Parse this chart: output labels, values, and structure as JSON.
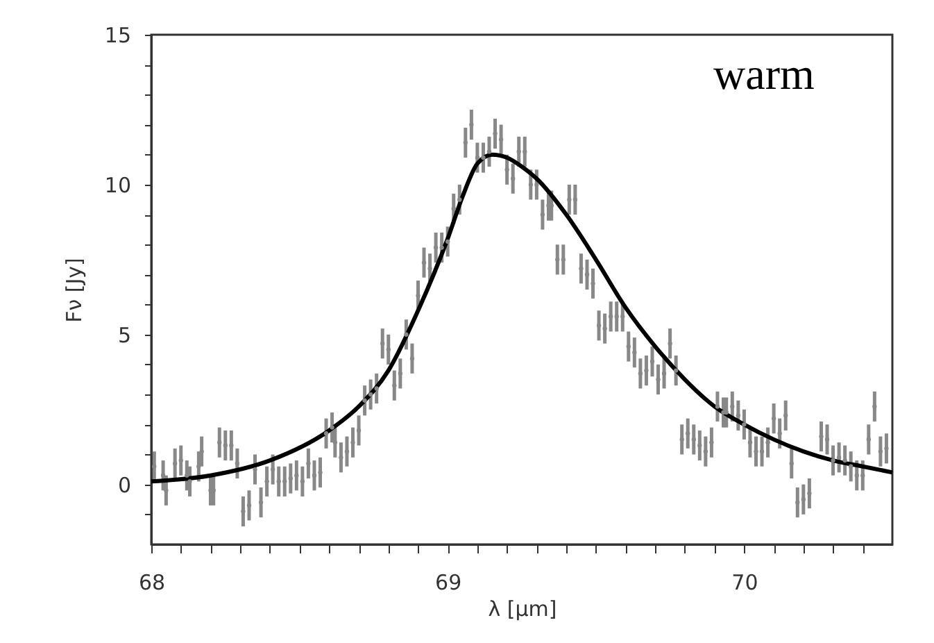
{
  "chart_data": {
    "type": "scatter",
    "xlabel": "λ [μm]",
    "ylabel": "Fν [Jy]",
    "annotations": [
      "warm"
    ],
    "xlim": [
      68,
      70.5
    ],
    "ylim": [
      -2,
      15
    ],
    "xticks": [
      68,
      {
        "value": 68.1,
        "label": null
      },
      {
        "value": 68.2,
        "label": null
      },
      {
        "value": 68.3,
        "label": null
      },
      {
        "value": 68.4,
        "label": null
      },
      {
        "value": 68.5,
        "label": null
      },
      {
        "value": 68.6,
        "label": null
      },
      {
        "value": 68.7,
        "label": null
      },
      {
        "value": 68.8,
        "label": null
      },
      {
        "value": 68.9,
        "label": null
      },
      69,
      {
        "value": 69.1,
        "label": null
      },
      {
        "value": 69.2,
        "label": null
      },
      {
        "value": 69.3,
        "label": null
      },
      {
        "value": 69.4,
        "label": null
      },
      {
        "value": 69.5,
        "label": null
      },
      {
        "value": 69.6,
        "label": null
      },
      {
        "value": 69.7,
        "label": null
      },
      {
        "value": 69.8,
        "label": null
      },
      {
        "value": 69.9,
        "label": null
      },
      70,
      {
        "value": 70.1,
        "label": null
      },
      {
        "value": 70.2,
        "label": null
      },
      {
        "value": 70.3,
        "label": null
      },
      {
        "value": 70.4,
        "label": null
      }
    ],
    "yticks": [
      {
        "value": -1,
        "label": null
      },
      0,
      {
        "value": 1,
        "label": null
      },
      {
        "value": 2,
        "label": null
      },
      {
        "value": 3,
        "label": null
      },
      {
        "value": 4,
        "label": null
      },
      5,
      {
        "value": 6,
        "label": null
      },
      {
        "value": 7,
        "label": null
      },
      {
        "value": 8,
        "label": null
      },
      {
        "value": 9,
        "label": null
      },
      10,
      {
        "value": 11,
        "label": null
      },
      {
        "value": 12,
        "label": null
      },
      {
        "value": 13,
        "label": null
      },
      {
        "value": 14,
        "label": null
      },
      15
    ],
    "grid": false,
    "series": [
      {
        "marker": "circle",
        "color": "#888888",
        "x": [
          68.01,
          68.04,
          68.05,
          68.08,
          68.1,
          68.12,
          68.13,
          68.16,
          68.17,
          68.2,
          68.21,
          68.23,
          68.25,
          68.27,
          68.29,
          68.31,
          68.33,
          68.35,
          68.37,
          68.39,
          68.41,
          68.43,
          68.45,
          68.47,
          68.49,
          68.51,
          68.53,
          68.55,
          68.57,
          68.59,
          68.61,
          68.62,
          68.64,
          68.66,
          68.68,
          68.7,
          68.72,
          68.74,
          68.76,
          68.78,
          68.8,
          68.82,
          68.84,
          68.86,
          68.88,
          68.9,
          68.92,
          68.94,
          68.96,
          68.98,
          69.0,
          69.02,
          69.04,
          69.06,
          69.08,
          69.1,
          69.12,
          69.14,
          69.16,
          69.18,
          69.2,
          69.22,
          69.24,
          69.26,
          69.28,
          69.3,
          69.32,
          69.34,
          69.35,
          69.37,
          69.39,
          69.41,
          69.43,
          69.45,
          69.47,
          69.49,
          69.51,
          69.53,
          69.55,
          69.57,
          69.59,
          69.61,
          69.63,
          69.65,
          69.67,
          69.69,
          69.71,
          69.73,
          69.75,
          69.77,
          69.79,
          69.81,
          69.83,
          69.85,
          69.87,
          69.89,
          69.91,
          69.93,
          69.94,
          69.96,
          69.98,
          70.0,
          70.02,
          70.04,
          70.06,
          70.08,
          70.1,
          70.12,
          70.14,
          70.16,
          70.18,
          70.2,
          70.22,
          70.26,
          70.28,
          70.3,
          70.32,
          70.34,
          70.36,
          70.38,
          70.4,
          70.42,
          70.44,
          70.46,
          70.48
        ],
        "values": [
          0.6,
          0.3,
          -0.2,
          0.7,
          0.8,
          0.3,
          0.1,
          0.6,
          1.1,
          -0.2,
          -0.2,
          1.4,
          1.3,
          1.3,
          0.7,
          -0.9,
          -0.7,
          0.5,
          -0.6,
          0.1,
          0.5,
          0.1,
          0.1,
          0.2,
          0.3,
          0.1,
          0.7,
          0.3,
          0.4,
          1.7,
          1.9,
          1.4,
          0.9,
          1.1,
          1.4,
          1.8,
          2.8,
          3.0,
          3.2,
          4.7,
          4.5,
          3.3,
          3.7,
          5.0,
          4.2,
          6.3,
          7.4,
          7.2,
          7.9,
          7.9,
          8.1,
          9.2,
          9.5,
          11.4,
          12.0,
          10.9,
          10.9,
          11.1,
          11.7,
          11.5,
          10.5,
          10.2,
          11.1,
          11.1,
          10.0,
          10.0,
          9.0,
          9.3,
          9.3,
          7.5,
          7.5,
          9.5,
          9.5,
          7.2,
          7.0,
          6.7,
          5.3,
          5.2,
          5.6,
          5.6,
          5.6,
          4.6,
          4.4,
          3.7,
          3.8,
          4.1,
          3.5,
          3.7,
          4.7,
          3.8,
          1.5,
          1.7,
          1.5,
          1.3,
          1.1,
          1.4,
          2.6,
          2.4,
          2.4,
          2.6,
          2.3,
          2.0,
          1.4,
          1.1,
          1.1,
          1.4,
          2.2,
          1.7,
          2.3,
          0.7,
          -0.6,
          -0.5,
          -0.3,
          1.6,
          1.5,
          0.8,
          0.9,
          0.8,
          0.6,
          0.3,
          0.3,
          1.5,
          2.6,
          1.1,
          1.2
        ],
        "errors": [
          0.5,
          0.5,
          0.5,
          0.5,
          0.5,
          0.5,
          0.5,
          0.5,
          0.5,
          0.5,
          0.5,
          0.5,
          0.5,
          0.5,
          0.5,
          0.5,
          0.5,
          0.5,
          0.5,
          0.5,
          0.5,
          0.5,
          0.5,
          0.5,
          0.5,
          0.5,
          0.5,
          0.5,
          0.5,
          0.5,
          0.5,
          0.5,
          0.5,
          0.5,
          0.5,
          0.5,
          0.5,
          0.5,
          0.5,
          0.5,
          0.5,
          0.5,
          0.5,
          0.5,
          0.5,
          0.5,
          0.5,
          0.5,
          0.5,
          0.5,
          0.5,
          0.5,
          0.5,
          0.5,
          0.5,
          0.5,
          0.5,
          0.5,
          0.5,
          0.5,
          0.5,
          0.5,
          0.5,
          0.5,
          0.5,
          0.5,
          0.5,
          0.5,
          0.5,
          0.5,
          0.5,
          0.5,
          0.5,
          0.5,
          0.5,
          0.5,
          0.5,
          0.5,
          0.5,
          0.5,
          0.5,
          0.5,
          0.5,
          0.5,
          0.5,
          0.5,
          0.5,
          0.5,
          0.5,
          0.5,
          0.5,
          0.5,
          0.5,
          0.5,
          0.5,
          0.5,
          0.5,
          0.5,
          0.5,
          0.5,
          0.5,
          0.5,
          0.5,
          0.5,
          0.5,
          0.5,
          0.5,
          0.5,
          0.5,
          0.5,
          0.5,
          0.5,
          0.5,
          0.5,
          0.5,
          0.5,
          0.5,
          0.5,
          0.5,
          0.5,
          0.5,
          0.5,
          0.5,
          0.5,
          0.5
        ]
      },
      {
        "type": "line",
        "color": "#000000",
        "line_style": "solid",
        "x": [
          68.0,
          68.2,
          68.4,
          68.6,
          68.7,
          68.8,
          68.9,
          69.0,
          69.05,
          69.1,
          69.15,
          69.2,
          69.25,
          69.3,
          69.4,
          69.5,
          69.6,
          69.7,
          69.8,
          69.9,
          70.0,
          70.1,
          70.2,
          70.3,
          70.4,
          70.5
        ],
        "values": [
          0.1,
          0.3,
          0.8,
          1.8,
          2.6,
          3.8,
          5.8,
          8.2,
          9.6,
          10.7,
          11.0,
          10.9,
          10.6,
          10.2,
          9.0,
          7.5,
          5.9,
          4.6,
          3.5,
          2.6,
          2.0,
          1.5,
          1.1,
          0.8,
          0.6,
          0.4
        ]
      }
    ]
  }
}
